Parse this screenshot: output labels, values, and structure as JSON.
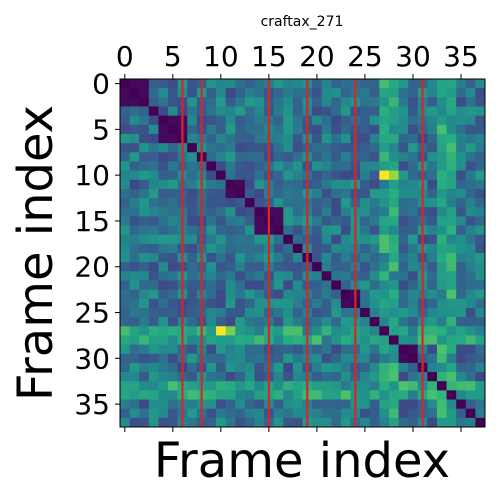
{
  "chart_data": {
    "type": "heatmap",
    "title": "craftax_271",
    "xlabel": "Frame index",
    "ylabel": "Frame index",
    "n_frames": 38,
    "x_axis_position": "top",
    "x_ticks": [
      0,
      5,
      10,
      15,
      20,
      25,
      30,
      35
    ],
    "y_ticks": [
      0,
      5,
      10,
      15,
      20,
      25,
      30,
      35
    ],
    "colormap": "viridis",
    "diagonal_blocks": [
      [
        0,
        2
      ],
      [
        4,
        6
      ],
      [
        11,
        12
      ],
      [
        14,
        16
      ],
      [
        23,
        24
      ],
      [
        29,
        30
      ]
    ],
    "vertical_lines": [
      6.5,
      8.5,
      15.5,
      19.5,
      24.5,
      31.5
    ],
    "line_color": "#d62728",
    "hot_spots": [
      {
        "row": 10,
        "col": 27,
        "value": 1.0
      },
      {
        "row": 27,
        "col": 10,
        "value": 1.0
      },
      {
        "row": 10,
        "col": 28,
        "value": 0.85
      },
      {
        "row": 27,
        "col": 11,
        "value": 0.8
      }
    ],
    "bright_columns": [
      27,
      28,
      33,
      34
    ],
    "bright_rows": [
      27,
      28,
      33,
      34
    ]
  }
}
